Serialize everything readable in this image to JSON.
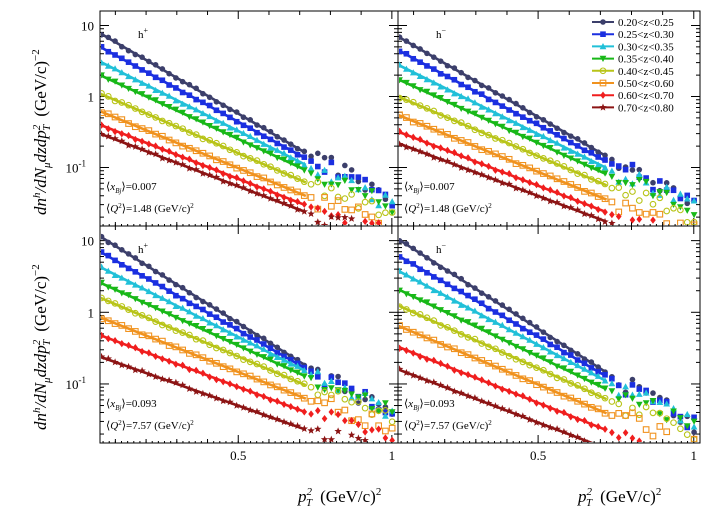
{
  "chart_data": {
    "type": "scatter",
    "scale": "log-y",
    "xlim": [
      0.05,
      1.02
    ],
    "ylim": [
      0.015,
      16
    ],
    "x_ticks": [
      {
        "value": 0.5,
        "label": "0.5"
      },
      {
        "value": 1,
        "label": "1"
      }
    ],
    "y_ticks": [
      {
        "value": 0.1,
        "label": "10",
        "exp": "-1"
      },
      {
        "value": 1,
        "label": "1"
      },
      {
        "value": 10,
        "label": "10"
      }
    ],
    "ylabel": {
      "main": "dn",
      "sup1": "h",
      "mid": "/dN",
      "sub1": "μ",
      "mid2": "dzdp",
      "sub2": "T",
      "sup2": "2",
      "unit": "(GeV/c)",
      "unit_exp": "−2"
    },
    "xlabel": {
      "main": "p",
      "sub": "T",
      "sup": "2",
      "unit": "(GeV/c)",
      "unit_exp": "2"
    },
    "fit_x_range": [
      0.05,
      0.72
    ],
    "legend": [
      {
        "label": "0.20<z<0.25",
        "color": "#3c3f6b",
        "marker": "circle"
      },
      {
        "label": "0.25<z<0.30",
        "color": "#1b2fe0",
        "marker": "square"
      },
      {
        "label": "0.30<z<0.35",
        "color": "#21c0d8",
        "marker": "triangle"
      },
      {
        "label": "0.35<z<0.40",
        "color": "#18b818",
        "marker": "triangle-down"
      },
      {
        "label": "0.40<z<0.45",
        "color": "#b8c418",
        "marker": "circle-open"
      },
      {
        "label": "0.50<z<0.60",
        "color": "#f0921e",
        "marker": "square-open"
      },
      {
        "label": "0.60<z<0.70",
        "color": "#f01e1e",
        "marker": "diamond"
      },
      {
        "label": "0.70<z<0.80",
        "color": "#8c1414",
        "marker": "star"
      }
    ],
    "panels": [
      {
        "id": "top-left",
        "hadron": "h",
        "charge": "+",
        "xbj_label": "x",
        "xbj_sub": "Bj",
        "xbj_value": "=0.007",
        "q2_label": "Q",
        "q2_sup": "2",
        "q2_value": "=1.48 (GeV/c)",
        "q2_value_sup": "2",
        "series": [
          {
            "amp": 7.8,
            "slope": -5.8
          },
          {
            "amp": 5.0,
            "slope": -5.4
          },
          {
            "amp": 3.1,
            "slope": -5.0
          },
          {
            "amp": 2.0,
            "slope": -4.6
          },
          {
            "amp": 1.1,
            "slope": -4.3
          },
          {
            "amp": 0.62,
            "slope": -4.1
          },
          {
            "amp": 0.4,
            "slope": -3.9
          },
          {
            "amp": 0.3,
            "slope": -3.8
          }
        ]
      },
      {
        "id": "top-right",
        "hadron": "h",
        "charge": "−",
        "xbj_label": "x",
        "xbj_sub": "Bj",
        "xbj_value": "=0.007",
        "q2_label": "Q",
        "q2_sup": "2",
        "q2_value": "=1.48 (GeV/c)",
        "q2_value_sup": "2",
        "series": [
          {
            "amp": 7.0,
            "slope": -5.8
          },
          {
            "amp": 4.5,
            "slope": -5.4
          },
          {
            "amp": 2.8,
            "slope": -5.0
          },
          {
            "amp": 1.75,
            "slope": -4.6
          },
          {
            "amp": 1.0,
            "slope": -4.3
          },
          {
            "amp": 0.55,
            "slope": -4.1
          },
          {
            "amp": 0.32,
            "slope": -3.9
          },
          {
            "amp": 0.22,
            "slope": -3.8
          }
        ]
      },
      {
        "id": "bottom-left",
        "hadron": "h",
        "charge": "+",
        "xbj_label": "x",
        "xbj_sub": "Bj",
        "xbj_value": "=0.093",
        "q2_label": "Q",
        "q2_sup": "2",
        "q2_value": "=7.57 (GeV/c)",
        "q2_value_sup": "2",
        "series": [
          {
            "amp": 11.5,
            "slope": -6.2
          },
          {
            "amp": 7.0,
            "slope": -5.6
          },
          {
            "amp": 4.3,
            "slope": -5.0
          },
          {
            "amp": 2.6,
            "slope": -4.5
          },
          {
            "amp": 1.6,
            "slope": -4.2
          },
          {
            "amp": 0.85,
            "slope": -3.9
          },
          {
            "amp": 0.48,
            "slope": -3.7
          },
          {
            "amp": 0.24,
            "slope": -3.5
          }
        ]
      },
      {
        "id": "bottom-right",
        "hadron": "h",
        "charge": "−",
        "xbj_label": "x",
        "xbj_sub": "Bj",
        "xbj_value": "=0.093",
        "q2_label": "Q",
        "q2_sup": "2",
        "q2_value": "=7.57 (GeV/c)",
        "q2_value_sup": "2",
        "series": [
          {
            "amp": 10.5,
            "slope": -6.4
          },
          {
            "amp": 6.2,
            "slope": -5.8
          },
          {
            "amp": 3.8,
            "slope": -5.3
          },
          {
            "amp": 2.1,
            "slope": -4.8
          },
          {
            "amp": 1.25,
            "slope": -4.5
          },
          {
            "amp": 0.65,
            "slope": -4.2
          },
          {
            "amp": 0.33,
            "slope": -4.0
          },
          {
            "amp": 0.16,
            "slope": -3.8
          }
        ]
      }
    ]
  }
}
